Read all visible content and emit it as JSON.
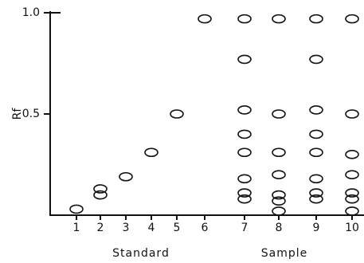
{
  "chart_data": {
    "type": "scatter",
    "y_label": "Rf",
    "categories": [
      "1",
      "2",
      "3",
      "4",
      "5",
      "6",
      "7",
      "8",
      "9",
      "10"
    ],
    "lanes": [
      [
        0.03
      ],
      [
        0.13,
        0.1
      ],
      [
        0.19
      ],
      [
        0.31
      ],
      [
        0.5
      ],
      [
        0.97
      ],
      [
        0.97,
        0.77,
        0.52,
        0.4,
        0.31,
        0.18,
        0.11,
        0.08
      ],
      [
        0.97,
        0.5,
        0.31,
        0.2,
        0.1,
        0.07,
        0.02
      ],
      [
        0.97,
        0.77,
        0.52,
        0.4,
        0.31,
        0.18,
        0.11,
        0.08
      ],
      [
        0.97,
        0.5,
        0.3,
        0.2,
        0.11,
        0.08,
        0.02
      ]
    ],
    "groups": [
      "Standard",
      "Sample"
    ],
    "ylim": [
      0,
      1
    ],
    "yticks": [
      0.5,
      {
        "value": 1,
        "label": "1.0"
      }
    ],
    "color": "#111111"
  }
}
